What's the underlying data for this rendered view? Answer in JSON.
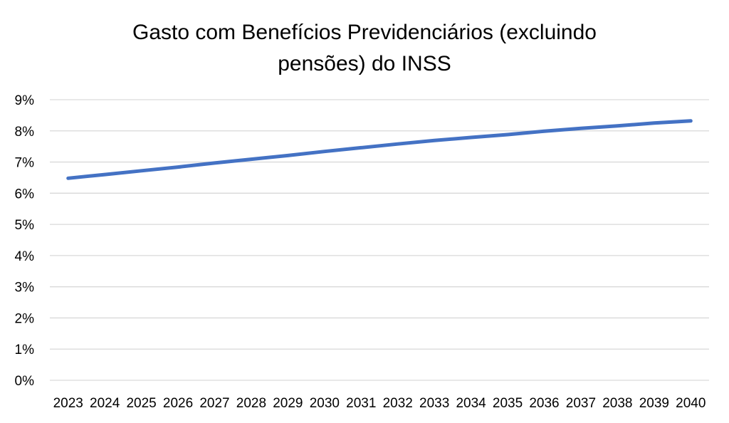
{
  "chart_data": {
    "type": "line",
    "title_lines": [
      "Gasto com Benefícios Previdenciários (excluindo",
      "pensões) do INSS"
    ],
    "xlabel": "",
    "ylabel": "",
    "categories": [
      "2023",
      "2024",
      "2025",
      "2026",
      "2027",
      "2028",
      "2029",
      "2030",
      "2031",
      "2032",
      "2033",
      "2034",
      "2035",
      "2036",
      "2037",
      "2038",
      "2039",
      "2040"
    ],
    "y_ticks": [
      0,
      1,
      2,
      3,
      4,
      5,
      6,
      7,
      8,
      9
    ],
    "y_tick_labels": [
      "0%",
      "1%",
      "2%",
      "3%",
      "4%",
      "5%",
      "6%",
      "7%",
      "8%",
      "9%"
    ],
    "ylim": [
      0,
      9
    ],
    "grid": "horizontal",
    "legend": "none",
    "series": [
      {
        "color": "#4472c4",
        "values": [
          6.48,
          6.6,
          6.72,
          6.84,
          6.97,
          7.09,
          7.21,
          7.34,
          7.46,
          7.58,
          7.69,
          7.79,
          7.88,
          7.99,
          8.08,
          8.16,
          8.25,
          8.32
        ]
      }
    ]
  }
}
